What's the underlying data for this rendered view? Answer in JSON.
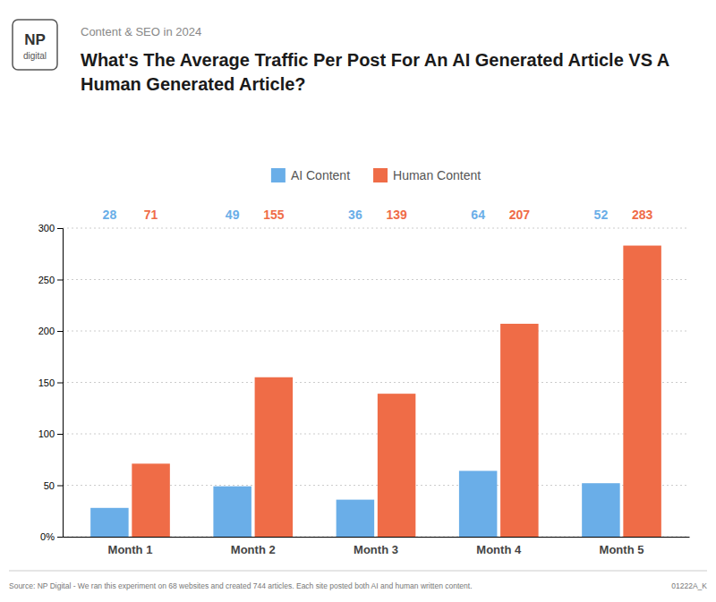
{
  "chart_data": {
    "type": "bar",
    "subtitle": "Content & SEO in 2024",
    "title": "What's The Average Traffic Per Post For An AI Generated Article VS A Human Generated Article?",
    "categories": [
      "Month 1",
      "Month 2",
      "Month 3",
      "Month 4",
      "Month 5"
    ],
    "series": [
      {
        "name": "AI Content",
        "color": "#6aaee8",
        "values": [
          28,
          49,
          36,
          64,
          52
        ]
      },
      {
        "name": "Human Content",
        "color": "#ef6c47",
        "values": [
          71,
          155,
          139,
          207,
          283
        ]
      }
    ],
    "ylim": [
      0,
      300
    ],
    "yticks": [
      {
        "value": 0,
        "label": "0%"
      },
      50,
      100,
      150,
      200,
      250,
      300
    ],
    "grid": true,
    "legend": "top",
    "data_labels": true,
    "annotations": [
      "NP",
      "digital",
      "Source: NP Digital - We ran this experiment on 68 websites and created 744 articles. Each site posted both AI and human written content.",
      "01222A_K"
    ]
  }
}
